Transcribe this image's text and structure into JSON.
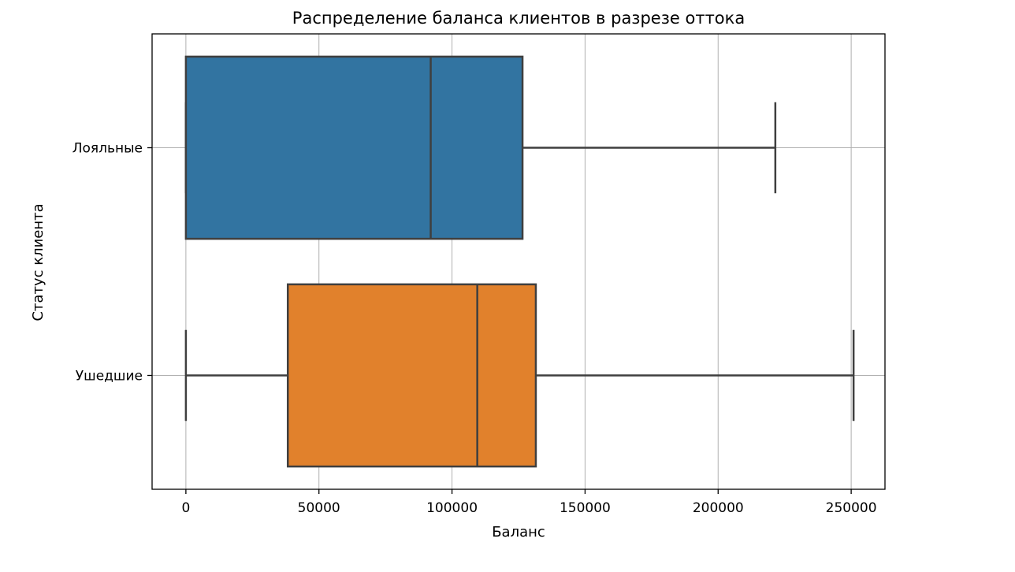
{
  "chart_data": {
    "type": "boxplot",
    "orientation": "horizontal",
    "title": "Распределение баланса клиентов в разрезе оттока",
    "xlabel": "Баланс",
    "ylabel": "Статус клиента",
    "xlim": [
      -12700,
      262700
    ],
    "x_ticks": [
      0,
      50000,
      100000,
      150000,
      200000,
      250000
    ],
    "grid": true,
    "categories": [
      "Лояльные",
      "Ушедшие"
    ],
    "boxes": [
      {
        "category": "Лояльные",
        "whisker_low": 0,
        "q1": 0,
        "median": 92000,
        "q3": 126500,
        "whisker_high": 221500,
        "color": "#3274a1"
      },
      {
        "category": "Ушедшие",
        "whisker_low": 0,
        "q1": 38300,
        "median": 109500,
        "q3": 131500,
        "whisker_high": 250900,
        "color": "#e1812c"
      }
    ]
  }
}
